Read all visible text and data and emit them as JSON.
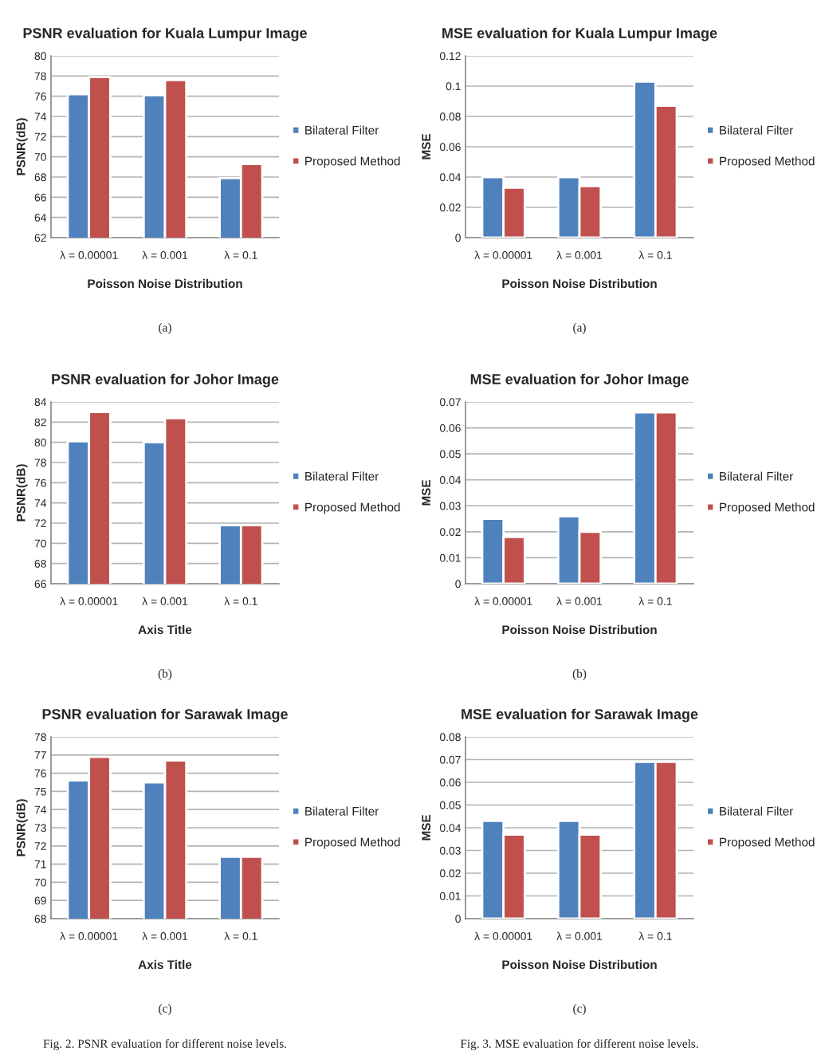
{
  "chart_data": [
    {
      "type": "bar",
      "title": "PSNR evaluation for Kuala Lumpur Image",
      "xlabel": "Poisson Noise Distribution",
      "ylabel": "PSNR(dB)",
      "categories": [
        "λ = 0.00001",
        "λ = 0.001",
        "λ = 0.1"
      ],
      "series": [
        {
          "name": "Bilateral Filter",
          "color": "#4f81bd",
          "values": [
            76.2,
            76.1,
            67.9
          ]
        },
        {
          "name": "Proposed Method",
          "color": "#c0504d",
          "values": [
            77.9,
            77.6,
            69.3
          ]
        }
      ],
      "ylim": [
        62,
        80
      ],
      "yticks": [
        62,
        64,
        66,
        68,
        70,
        72,
        74,
        76,
        78,
        80
      ],
      "grid": "y",
      "legend": "right",
      "annotations": [
        "(a)"
      ]
    },
    {
      "type": "bar",
      "title": "MSE evaluation for Kuala Lumpur Image",
      "xlabel": "Poisson Noise Distribution",
      "ylabel": "MSE",
      "categories": [
        "λ = 0.00001",
        "λ = 0.001",
        "λ = 0.1"
      ],
      "series": [
        {
          "name": "Bilateral Filter",
          "color": "#4f81bd",
          "values": [
            0.04,
            0.04,
            0.103
          ]
        },
        {
          "name": "Proposed Method",
          "color": "#c0504d",
          "values": [
            0.033,
            0.034,
            0.087
          ]
        }
      ],
      "ylim": [
        0,
        0.12
      ],
      "yticks": [
        0,
        0.02,
        0.04,
        0.06,
        0.08,
        0.1,
        0.12
      ],
      "grid": "y",
      "legend": "right",
      "annotations": [
        "(a)"
      ]
    },
    {
      "type": "bar",
      "title": "PSNR evaluation for Johor Image",
      "xlabel": "Axis Title",
      "ylabel": "PSNR(dB)",
      "categories": [
        "λ = 0.00001",
        "λ = 0.001",
        "λ = 0.1"
      ],
      "series": [
        {
          "name": "Bilateral Filter",
          "color": "#4f81bd",
          "values": [
            80.1,
            80.0,
            71.8
          ]
        },
        {
          "name": "Proposed Method",
          "color": "#c0504d",
          "values": [
            83.0,
            82.4,
            71.8
          ]
        }
      ],
      "ylim": [
        66,
        84
      ],
      "yticks": [
        66,
        68,
        70,
        72,
        74,
        76,
        78,
        80,
        82,
        84
      ],
      "grid": "y",
      "legend": "right",
      "annotations": [
        "(b)"
      ]
    },
    {
      "type": "bar",
      "title": "MSE evaluation for Johor Image",
      "xlabel": "Poisson Noise Distribution",
      "ylabel": "MSE",
      "categories": [
        "λ = 0.00001",
        "λ = 0.001",
        "λ = 0.1"
      ],
      "series": [
        {
          "name": "Bilateral Filter",
          "color": "#4f81bd",
          "values": [
            0.025,
            0.026,
            0.066
          ]
        },
        {
          "name": "Proposed Method",
          "color": "#c0504d",
          "values": [
            0.018,
            0.02,
            0.066
          ]
        }
      ],
      "ylim": [
        0,
        0.07
      ],
      "yticks": [
        0,
        0.01,
        0.02,
        0.03,
        0.04,
        0.05,
        0.06,
        0.07
      ],
      "grid": "y",
      "legend": "right",
      "annotations": [
        "(b)"
      ]
    },
    {
      "type": "bar",
      "title": "PSNR evaluation for Sarawak Image",
      "xlabel": "Axis Title",
      "ylabel": "PSNR(dB)",
      "categories": [
        "λ = 0.00001",
        "λ = 0.001",
        "λ = 0.1"
      ],
      "series": [
        {
          "name": "Bilateral Filter",
          "color": "#4f81bd",
          "values": [
            75.6,
            75.5,
            71.4
          ]
        },
        {
          "name": "Proposed Method",
          "color": "#c0504d",
          "values": [
            76.9,
            76.7,
            71.4
          ]
        }
      ],
      "ylim": [
        68,
        78
      ],
      "yticks": [
        68,
        69,
        70,
        71,
        72,
        73,
        74,
        75,
        76,
        77,
        78
      ],
      "grid": "y",
      "legend": "right",
      "annotations": [
        "(c)",
        "Fig. 2. PSNR evaluation for different noise levels."
      ]
    },
    {
      "type": "bar",
      "title": "MSE evaluation for Sarawak Image",
      "xlabel": "Poisson Noise Distribution",
      "ylabel": "MSE",
      "categories": [
        "λ = 0.00001",
        "λ = 0.001",
        "λ = 0.1"
      ],
      "series": [
        {
          "name": "Bilateral Filter",
          "color": "#4f81bd",
          "values": [
            0.043,
            0.043,
            0.069
          ]
        },
        {
          "name": "Proposed Method",
          "color": "#c0504d",
          "values": [
            0.037,
            0.037,
            0.069
          ]
        }
      ],
      "ylim": [
        0,
        0.08
      ],
      "yticks": [
        0,
        0.01,
        0.02,
        0.03,
        0.04,
        0.05,
        0.06,
        0.07,
        0.08
      ],
      "grid": "y",
      "legend": "right",
      "annotations": [
        "(c)",
        "Fig. 3. MSE evaluation for different noise levels."
      ]
    }
  ]
}
